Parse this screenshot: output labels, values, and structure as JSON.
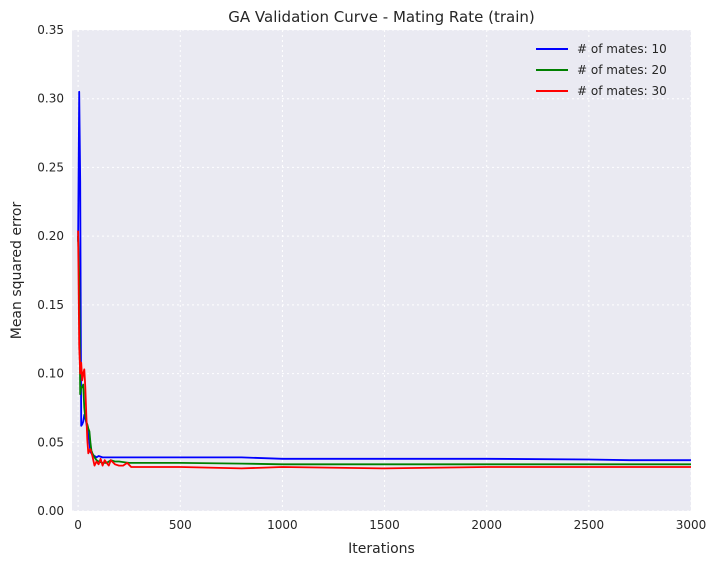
{
  "chart_data": {
    "type": "line",
    "title": "GA Validation Curve - Mating Rate (train)",
    "xlabel": "Iterations",
    "ylabel": "Mean squared error",
    "xlim": [
      -30,
      3000
    ],
    "ylim": [
      0,
      0.35
    ],
    "xticks": [
      0,
      500,
      1000,
      1500,
      2000,
      2500,
      3000
    ],
    "xtick_labels": [
      "0",
      "500",
      "1000",
      "1500",
      "2000",
      "2500",
      "3000"
    ],
    "yticks": [
      0,
      0.05,
      0.1,
      0.15,
      0.2,
      0.25,
      0.3,
      0.35
    ],
    "ytick_labels": [
      "0.00",
      "0.05",
      "0.10",
      "0.15",
      "0.20",
      "0.25",
      "0.30",
      "0.35"
    ],
    "grid": true,
    "legend_position": "top-right",
    "series": [
      {
        "name": "# of mates: 10",
        "color": "#0000ff",
        "x": [
          0,
          5,
          10,
          15,
          20,
          25,
          30,
          35,
          40,
          45,
          50,
          55,
          60,
          65,
          70,
          80,
          90,
          100,
          120,
          150,
          200,
          300,
          500,
          800,
          1000,
          1500,
          2000,
          2500,
          2700,
          3000
        ],
        "y": [
          0.196,
          0.305,
          0.24,
          0.062,
          0.063,
          0.065,
          0.07,
          0.068,
          0.064,
          0.06,
          0.055,
          0.05,
          0.043,
          0.042,
          0.041,
          0.04,
          0.039,
          0.04,
          0.039,
          0.039,
          0.039,
          0.039,
          0.039,
          0.039,
          0.038,
          0.038,
          0.038,
          0.0375,
          0.037,
          0.037
        ]
      },
      {
        "name": "# of mates: 20",
        "color": "#008000",
        "x": [
          0,
          5,
          10,
          15,
          20,
          25,
          30,
          35,
          40,
          45,
          50,
          55,
          60,
          65,
          70,
          80,
          90,
          100,
          120,
          140,
          160,
          180,
          200,
          250,
          300,
          500,
          800,
          1000,
          1500,
          2000,
          2500,
          3000
        ],
        "y": [
          0.2,
          0.17,
          0.085,
          0.09,
          0.09,
          0.092,
          0.075,
          0.068,
          0.065,
          0.063,
          0.06,
          0.058,
          0.05,
          0.044,
          0.042,
          0.039,
          0.037,
          0.036,
          0.035,
          0.035,
          0.037,
          0.036,
          0.036,
          0.035,
          0.035,
          0.035,
          0.0345,
          0.034,
          0.034,
          0.034,
          0.034,
          0.034
        ]
      },
      {
        "name": "# of mates: 30",
        "color": "#ff0000",
        "x": [
          0,
          5,
          10,
          15,
          20,
          25,
          30,
          35,
          40,
          45,
          50,
          55,
          60,
          70,
          80,
          90,
          100,
          110,
          120,
          130,
          140,
          150,
          160,
          180,
          200,
          220,
          240,
          260,
          300,
          500,
          800,
          1000,
          1500,
          2000,
          2500,
          3000
        ],
        "y": [
          0.204,
          0.12,
          0.1,
          0.108,
          0.095,
          0.1,
          0.103,
          0.09,
          0.07,
          0.052,
          0.042,
          0.044,
          0.045,
          0.04,
          0.033,
          0.036,
          0.034,
          0.038,
          0.033,
          0.037,
          0.035,
          0.033,
          0.037,
          0.034,
          0.033,
          0.033,
          0.035,
          0.032,
          0.032,
          0.032,
          0.031,
          0.032,
          0.031,
          0.032,
          0.032,
          0.032
        ]
      }
    ]
  }
}
